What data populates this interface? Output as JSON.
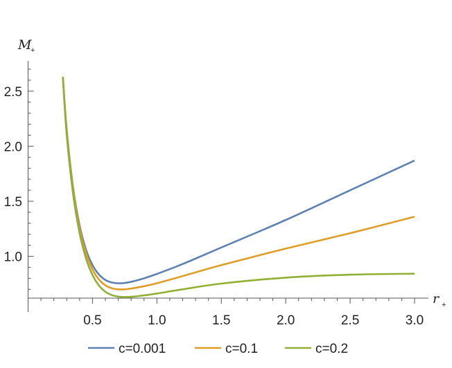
{
  "chart_data": {
    "type": "line",
    "title": "",
    "xlabel": "r",
    "xlabel_sub": "+",
    "ylabel": "M",
    "ylabel_sub": "+",
    "xlim": [
      0,
      3.0
    ],
    "ylim": [
      0.62,
      2.75
    ],
    "x_ticks": [
      "0.5",
      "1.0",
      "1.5",
      "2.0",
      "2.5",
      "3.0"
    ],
    "y_ticks": [
      "1.0",
      "1.5",
      "2.0",
      "2.5"
    ],
    "grid": false,
    "legend_position": "bottom",
    "series": [
      {
        "name": "c=0.001",
        "color": "#5e81b5",
        "x": [
          0.27,
          0.3,
          0.35,
          0.4,
          0.45,
          0.5,
          0.55,
          0.6,
          0.65,
          0.7,
          0.75,
          0.8,
          0.9,
          1.0,
          1.2,
          1.5,
          2.0,
          2.5,
          3.0
        ],
        "values": [
          2.63,
          2.15,
          1.62,
          1.28,
          1.06,
          0.92,
          0.835,
          0.785,
          0.762,
          0.755,
          0.758,
          0.768,
          0.8,
          0.84,
          0.93,
          1.08,
          1.33,
          1.6,
          1.87
        ]
      },
      {
        "name": "c=0.1",
        "color": "#e19c24",
        "x": [
          0.27,
          0.3,
          0.35,
          0.4,
          0.45,
          0.5,
          0.55,
          0.6,
          0.65,
          0.7,
          0.75,
          0.8,
          0.9,
          1.0,
          1.2,
          1.5,
          2.0,
          2.5,
          3.0
        ],
        "values": [
          2.63,
          2.13,
          1.6,
          1.25,
          1.03,
          0.88,
          0.79,
          0.737,
          0.71,
          0.7,
          0.7,
          0.707,
          0.728,
          0.755,
          0.82,
          0.92,
          1.07,
          1.21,
          1.36
        ]
      },
      {
        "name": "c=0.2",
        "color": "#8fb032",
        "x": [
          0.27,
          0.3,
          0.35,
          0.4,
          0.45,
          0.5,
          0.55,
          0.6,
          0.65,
          0.7,
          0.75,
          0.8,
          0.9,
          1.0,
          1.2,
          1.5,
          2.0,
          2.5,
          3.0
        ],
        "values": [
          2.63,
          2.1,
          1.56,
          1.21,
          0.98,
          0.83,
          0.735,
          0.678,
          0.648,
          0.634,
          0.63,
          0.632,
          0.645,
          0.662,
          0.7,
          0.752,
          0.806,
          0.833,
          0.842
        ]
      }
    ]
  }
}
